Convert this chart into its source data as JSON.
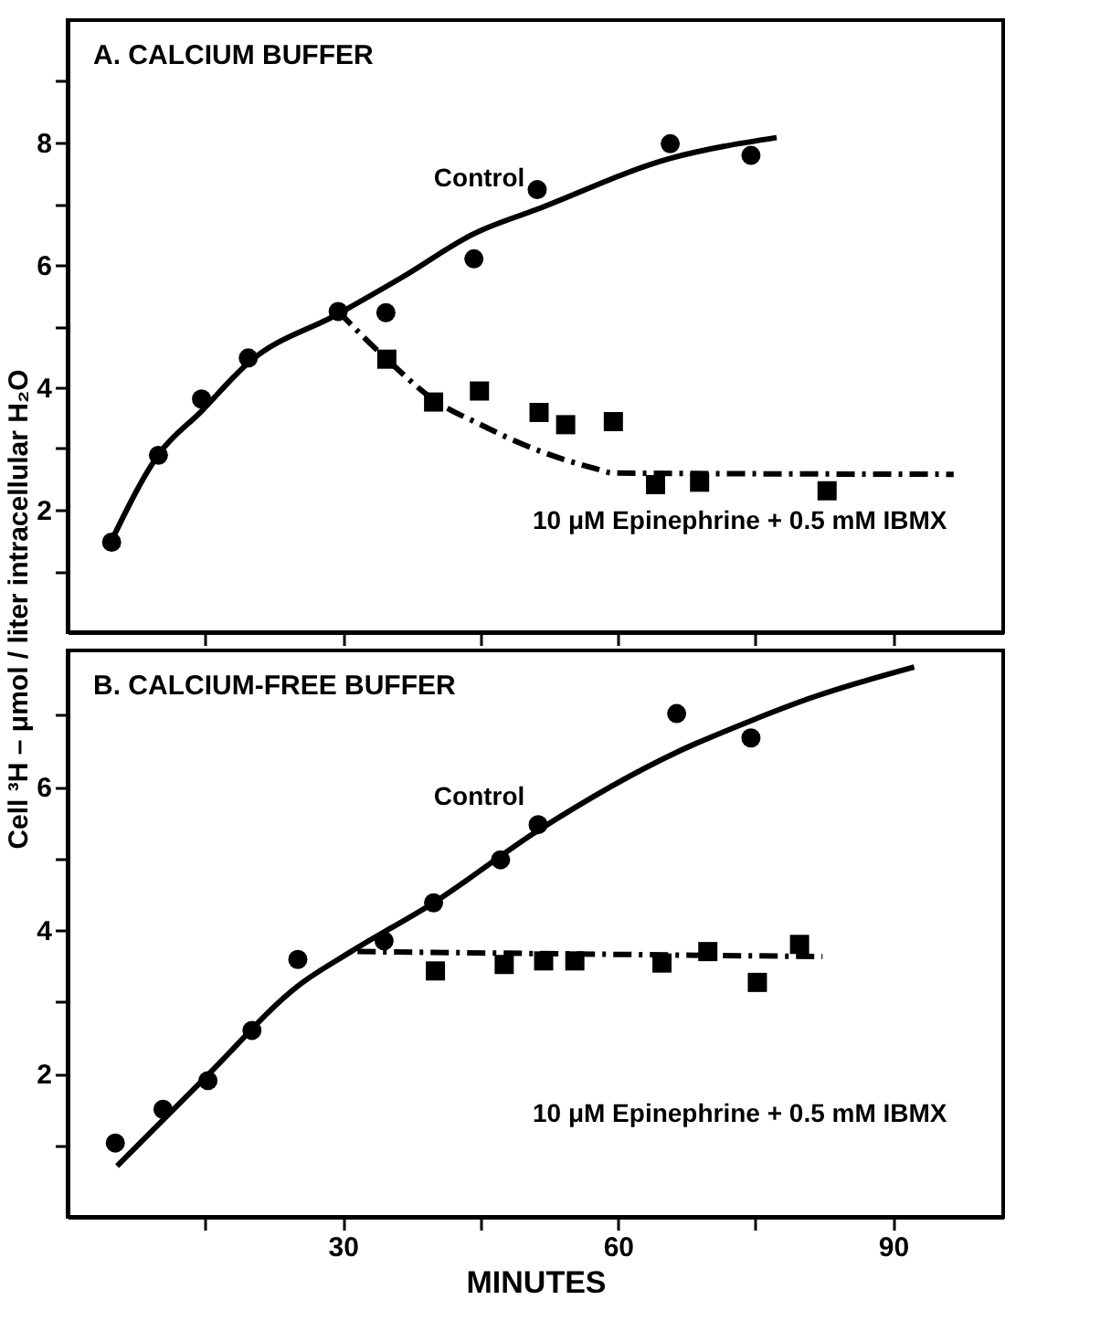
{
  "chart_data": [
    {
      "type": "scatter",
      "title": "A. CALCIUM BUFFER",
      "ylabel": "Cell ³H – μmol / liter intracellular H₂O",
      "tick_labels": "y",
      "xlim": [
        0,
        102
      ],
      "ylim": [
        0,
        10
      ],
      "xticks": [
        {
          "value": 15,
          "label": null
        },
        {
          "value": 30,
          "label": null
        },
        {
          "value": 45,
          "label": null
        },
        {
          "value": 60,
          "label": null
        },
        {
          "value": 75,
          "label": null
        },
        {
          "value": 90,
          "label": null
        }
      ],
      "yticks": [
        {
          "value": 1,
          "label": null
        },
        2,
        {
          "value": 3,
          "label": null
        },
        4,
        {
          "value": 5,
          "label": null
        },
        6,
        {
          "value": 7,
          "label": null
        },
        8,
        {
          "value": 9,
          "label": null
        }
      ],
      "grid": false,
      "series": [
        {
          "type": "line",
          "color": "#000000",
          "line_style": "solid",
          "x": [
            4.8,
            9.9,
            14.6,
            19.7,
            29.5,
            36.6,
            44.3,
            51.2,
            65.7,
            77.3
          ],
          "values": [
            1.5,
            2.9,
            3.61,
            4.4,
            5.2,
            5.81,
            6.51,
            6.91,
            7.74,
            8.08
          ]
        },
        {
          "type": "line",
          "color": "#000000",
          "line_style": "dashed",
          "x": [
            29.5,
            34.8,
            39.9,
            44.9,
            50.6,
            57.6,
            59.5,
            96.6
          ],
          "values": [
            5.24,
            4.46,
            3.8,
            3.4,
            3.01,
            2.67,
            2.6,
            2.58
          ]
        },
        {
          "type": "scatter",
          "color": "#000000",
          "marker": "circle",
          "x": [
            4.8,
            9.9,
            14.6,
            19.7,
            29.5,
            34.7,
            44.3,
            51.2,
            65.7,
            74.5
          ],
          "values": [
            1.47,
            2.89,
            3.81,
            4.48,
            5.24,
            5.22,
            6.1,
            7.23,
            7.98,
            7.79
          ]
        },
        {
          "type": "scatter",
          "color": "#000000",
          "marker": "square",
          "x": [
            34.8,
            39.9,
            44.9,
            51.4,
            54.3,
            59.5,
            64.1,
            68.9,
            82.8
          ],
          "values": [
            4.46,
            3.76,
            3.94,
            3.59,
            3.39,
            3.44,
            2.41,
            2.45,
            2.31
          ]
        }
      ],
      "annotations": [
        "Control",
        "10 μM Epinephrine + 0.5 mM IBMX"
      ]
    },
    {
      "type": "scatter",
      "title": "B. CALCIUM-FREE BUFFER",
      "xlabel": "MINUTES",
      "xlim": [
        0,
        102
      ],
      "ylim": [
        0,
        7.9
      ],
      "xticks": [
        {
          "value": 15,
          "label": null
        },
        30,
        {
          "value": 45,
          "label": null
        },
        60,
        {
          "value": 75,
          "label": null
        },
        90
      ],
      "yticks": [
        {
          "value": 1,
          "label": null
        },
        2,
        {
          "value": 3,
          "label": null
        },
        4,
        {
          "value": 5,
          "label": null
        },
        6,
        {
          "value": 7,
          "label": null
        }
      ],
      "grid": false,
      "series": [
        {
          "type": "line",
          "color": "#000000",
          "line_style": "solid",
          "x": [
            5.4,
            15.3,
            25.1,
            30.9,
            39.9,
            51.3,
            66.4,
            74.5,
            81.3,
            92.3
          ],
          "values": [
            0.71,
            1.98,
            3.22,
            3.7,
            4.38,
            5.39,
            6.48,
            6.92,
            7.25,
            7.67
          ]
        },
        {
          "type": "line",
          "color": "#000000",
          "line_style": "dashed",
          "x": [
            31.6,
            82.3
          ],
          "values": [
            3.7,
            3.63
          ]
        },
        {
          "type": "scatter",
          "color": "#000000",
          "marker": "circle",
          "x": [
            5.2,
            10.4,
            15.3,
            20.1,
            25.1,
            34.5,
            39.9,
            47.2,
            51.3,
            66.4,
            74.5
          ],
          "values": [
            1.03,
            1.5,
            1.9,
            2.6,
            3.59,
            3.85,
            4.38,
            4.98,
            5.47,
            7.02,
            6.68
          ]
        },
        {
          "type": "scatter",
          "color": "#000000",
          "marker": "square",
          "x": [
            40.1,
            47.6,
            51.9,
            55.3,
            64.8,
            69.8,
            75.2,
            79.8
          ],
          "values": [
            3.43,
            3.52,
            3.57,
            3.57,
            3.54,
            3.7,
            3.27,
            3.8
          ]
        }
      ],
      "annotations": [
        "Control",
        "10 μM Epinephrine + 0.5 mM IBMX"
      ]
    }
  ]
}
